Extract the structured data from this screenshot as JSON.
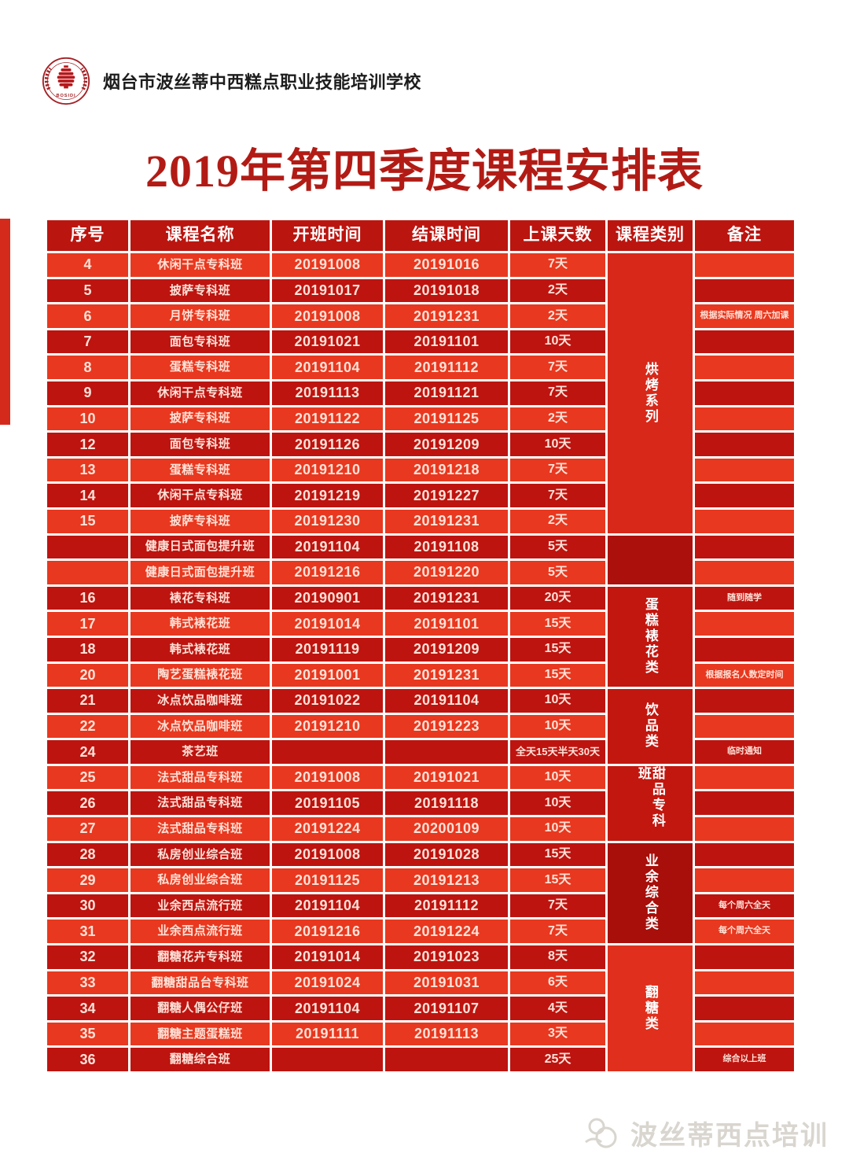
{
  "header": {
    "school_name": "烟台市波丝蒂中西糕点职业技能培训学校",
    "logo_text": "BOSIDI"
  },
  "title": "2019年第四季度课程安排表",
  "table": {
    "columns": [
      "序号",
      "课程名称",
      "开班时间",
      "结课时间",
      "上课天数",
      "课程类别",
      "备注"
    ],
    "rows": [
      {
        "no": "4",
        "name": "休闲干点专科班",
        "start": "20191008",
        "end": "20191016",
        "days": "7天",
        "note": ""
      },
      {
        "no": "5",
        "name": "披萨专科班",
        "start": "20191017",
        "end": "20191018",
        "days": "2天",
        "note": ""
      },
      {
        "no": "6",
        "name": "月饼专科班",
        "start": "20191008",
        "end": "20191231",
        "days": "2天",
        "note": "根据实际情况  周六加课"
      },
      {
        "no": "7",
        "name": "面包专科班",
        "start": "20191021",
        "end": "20191101",
        "days": "10天",
        "note": ""
      },
      {
        "no": "8",
        "name": "蛋糕专科班",
        "start": "20191104",
        "end": "20191112",
        "days": "7天",
        "note": ""
      },
      {
        "no": "9",
        "name": "休闲干点专科班",
        "start": "20191113",
        "end": "20191121",
        "days": "7天",
        "note": ""
      },
      {
        "no": "10",
        "name": "披萨专科班",
        "start": "20191122",
        "end": "20191125",
        "days": "2天",
        "note": ""
      },
      {
        "no": "12",
        "name": "面包专科班",
        "start": "20191126",
        "end": "20191209",
        "days": "10天",
        "note": ""
      },
      {
        "no": "13",
        "name": "蛋糕专科班",
        "start": "20191210",
        "end": "20191218",
        "days": "7天",
        "note": ""
      },
      {
        "no": "14",
        "name": "休闲干点专科班",
        "start": "20191219",
        "end": "20191227",
        "days": "7天",
        "note": ""
      },
      {
        "no": "15",
        "name": "披萨专科班",
        "start": "20191230",
        "end": "20191231",
        "days": "2天",
        "note": ""
      },
      {
        "no": "",
        "name": "健康日式面包提升班",
        "start": "20191104",
        "end": "20191108",
        "days": "5天",
        "note": ""
      },
      {
        "no": "",
        "name": "健康日式面包提升班",
        "start": "20191216",
        "end": "20191220",
        "days": "5天",
        "note": ""
      },
      {
        "no": "16",
        "name": "裱花专科班",
        "start": "20190901",
        "end": "20191231",
        "days": "20天",
        "note": "随到随学"
      },
      {
        "no": "17",
        "name": "韩式裱花班",
        "start": "20191014",
        "end": "20191101",
        "days": "15天",
        "note": ""
      },
      {
        "no": "18",
        "name": "韩式裱花班",
        "start": "20191119",
        "end": "20191209",
        "days": "15天",
        "note": ""
      },
      {
        "no": "20",
        "name": "陶艺蛋糕裱花班",
        "start": "20191001",
        "end": "20191231",
        "days": "15天",
        "note": "根据报名人数定时间"
      },
      {
        "no": "21",
        "name": "冰点饮品咖啡班",
        "start": "20191022",
        "end": "20191104",
        "days": "10天",
        "note": ""
      },
      {
        "no": "22",
        "name": "冰点饮品咖啡班",
        "start": "20191210",
        "end": "20191223",
        "days": "10天",
        "note": ""
      },
      {
        "no": "24",
        "name": "茶艺班",
        "start": "",
        "end": "",
        "days": "全天15天半天30天",
        "note": "临时通知"
      },
      {
        "no": "25",
        "name": "法式甜品专科班",
        "start": "20191008",
        "end": "20191021",
        "days": "10天",
        "note": ""
      },
      {
        "no": "26",
        "name": "法式甜品专科班",
        "start": "20191105",
        "end": "20191118",
        "days": "10天",
        "note": ""
      },
      {
        "no": "27",
        "name": "法式甜品专科班",
        "start": "20191224",
        "end": "20200109",
        "days": "10天",
        "note": ""
      },
      {
        "no": "28",
        "name": "私房创业综合班",
        "start": "20191008",
        "end": "20191028",
        "days": "15天",
        "note": ""
      },
      {
        "no": "29",
        "name": "私房创业综合班",
        "start": "20191125",
        "end": "20191213",
        "days": "15天",
        "note": ""
      },
      {
        "no": "30",
        "name": "业余西点流行班",
        "start": "20191104",
        "end": "20191112",
        "days": "7天",
        "note": "每个周六全天"
      },
      {
        "no": "31",
        "name": "业余西点流行班",
        "start": "20191216",
        "end": "20191224",
        "days": "7天",
        "note": "每个周六全天"
      },
      {
        "no": "32",
        "name": "翻糖花卉专科班",
        "start": "20191014",
        "end": "20191023",
        "days": "8天",
        "note": ""
      },
      {
        "no": "33",
        "name": "翻糖甜品台专科班",
        "start": "20191024",
        "end": "20191031",
        "days": "6天",
        "note": ""
      },
      {
        "no": "34",
        "name": "翻糖人偶公仔班",
        "start": "20191104",
        "end": "20191107",
        "days": "4天",
        "note": ""
      },
      {
        "no": "35",
        "name": "翻糖主题蛋糕班",
        "start": "20191111",
        "end": "20191113",
        "days": "3天",
        "note": ""
      },
      {
        "no": "36",
        "name": "翻糖综合班",
        "start": "",
        "end": "",
        "days": "25天",
        "note": "综合以上班"
      }
    ],
    "categories": [
      {
        "label": "烘烤系列",
        "start": 0,
        "count": 11,
        "color_key": "cat_bake"
      },
      {
        "label": "",
        "start": 11,
        "count": 2,
        "color_key": "cat_blank"
      },
      {
        "label": "蛋糕裱花类",
        "start": 13,
        "count": 4,
        "color_key": "cat_mid"
      },
      {
        "label": "饮品类",
        "start": 17,
        "count": 3,
        "color_key": "cat_mid"
      },
      {
        "label": "甜品专科班",
        "start": 20,
        "count": 3,
        "color_key": "cat_mid"
      },
      {
        "label": "业余综合类",
        "start": 23,
        "count": 4,
        "color_key": "cat_darkest"
      },
      {
        "label": "翻糖类",
        "start": 27,
        "count": 5,
        "color_key": "cat_fondant"
      }
    ]
  },
  "watermark": {
    "text": "波丝蒂西点培训"
  },
  "colors": {
    "row_light": "#e8381f",
    "row_dark": "#bd1410",
    "header_bg": "#bb1510",
    "cat_bake": "#d7281a",
    "cat_blank": "#ac100d",
    "cat_mid": "#c2170f",
    "cat_darkest": "#a80e0a",
    "cat_fondant": "#e0301d",
    "title": "#b21b15",
    "watermark": "#d9d5cf",
    "edge_strip": "#d42a1c",
    "seal": "#a42125",
    "hive": "#b5181c"
  }
}
